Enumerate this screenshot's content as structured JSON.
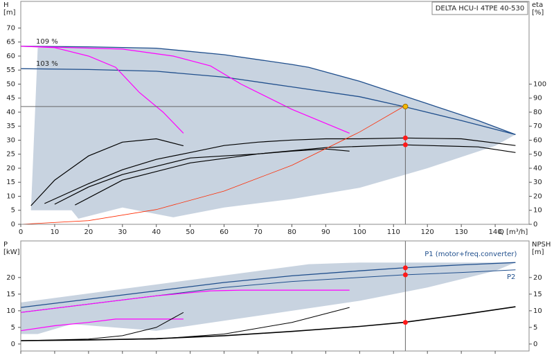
{
  "chart_data": [
    {
      "type": "line",
      "title": "DELTA HCU-I 4TPE 40-530",
      "y_label": "H",
      "y_unit": "[m]",
      "y2_label": "eta",
      "y2_unit": "[%]",
      "x_label": "Q [m³/h]",
      "xlim": [
        0,
        150
      ],
      "xticks": [
        0,
        10,
        20,
        30,
        40,
        50,
        60,
        70,
        80,
        90,
        100,
        110,
        120,
        130,
        140
      ],
      "ylim": [
        0,
        79.5
      ],
      "yticks": [
        0,
        5,
        10,
        15,
        20,
        25,
        30,
        35,
        40,
        45,
        50,
        55,
        60,
        65,
        70
      ],
      "y2lim": [
        0,
        159
      ],
      "y2ticks": [
        0,
        10,
        20,
        30,
        40,
        50,
        60,
        70,
        80,
        90,
        100
      ],
      "show_xtick_labels": true,
      "series": [
        {
          "color": "#c8d3e0",
          "fill": true,
          "x": [
            3,
            5,
            10,
            20,
            40,
            60,
            80,
            85,
            100,
            120,
            135,
            146,
            140,
            120,
            100,
            80,
            60,
            45,
            30,
            17,
            15,
            3
          ],
          "values": [
            5,
            63,
            63.2,
            63.3,
            62.8,
            60.5,
            57,
            56,
            51,
            43,
            37,
            32,
            28,
            20,
            13,
            9,
            6,
            2.5,
            6,
            2,
            5,
            5
          ]
        },
        {
          "name": "109 %",
          "color": "#1f4e8c",
          "width": 1.3,
          "x": [
            0,
            20,
            40,
            60,
            80,
            85,
            100,
            120,
            135,
            146
          ],
          "values": [
            63.5,
            63.3,
            62.8,
            60.5,
            57,
            56,
            51,
            43,
            37,
            32
          ]
        },
        {
          "name": "103 %",
          "color": "#1f4e8c",
          "width": 1.3,
          "x": [
            0,
            20,
            40,
            60,
            80,
            100,
            113,
            130,
            146
          ],
          "values": [
            55.5,
            55.2,
            54.6,
            52.5,
            49,
            45.5,
            42,
            37,
            32
          ]
        },
        {
          "color": "#ff00ff",
          "width": 1.2,
          "x": [
            0,
            10,
            20,
            28,
            35,
            42,
            48
          ],
          "values": [
            63.5,
            63,
            60,
            56,
            47,
            40,
            32.5
          ]
        },
        {
          "color": "#ff00ff",
          "width": 1.2,
          "x": [
            0,
            30,
            45,
            56,
            65,
            80,
            97
          ],
          "values": [
            63.5,
            62.5,
            60,
            56.5,
            50,
            41,
            32.5
          ]
        },
        {
          "color": "#000000",
          "width": 1.2,
          "axis": "y2",
          "x": [
            3,
            10,
            20,
            30,
            40,
            48
          ],
          "values": [
            13.3,
            31.5,
            48.8,
            58.6,
            61,
            56
          ]
        },
        {
          "color": "#000000",
          "width": 1.2,
          "axis": "y2",
          "x": [
            7,
            20,
            30,
            40,
            50,
            60,
            70,
            80,
            90,
            100,
            113,
            130,
            146
          ],
          "values": [
            14.8,
            29,
            38.9,
            46.3,
            51.2,
            56.2,
            58.6,
            60.1,
            61,
            61,
            61.6,
            61,
            56.2
          ]
        },
        {
          "color": "#000000",
          "width": 1.2,
          "axis": "y2",
          "x": [
            16,
            30,
            50,
            70,
            90,
            113,
            135,
            146
          ],
          "values": [
            13.8,
            31.5,
            43.8,
            50.2,
            54.7,
            56.7,
            55.2,
            51.2
          ]
        },
        {
          "color": "#000000",
          "width": 1.2,
          "axis": "y2",
          "x": [
            10,
            20,
            30,
            40,
            50,
            60,
            70,
            80,
            90,
            97
          ],
          "values": [
            14.3,
            26.6,
            35.5,
            41.4,
            47.3,
            48.8,
            50.2,
            52.2,
            53.7,
            52.2
          ]
        },
        {
          "color": "#ff2a00",
          "width": 0.8,
          "x": [
            0,
            20,
            40,
            60,
            80,
            100,
            113
          ],
          "values": [
            0,
            1.32,
            5.26,
            11.84,
            21.05,
            32.9,
            42
          ]
        }
      ],
      "points": [
        {
          "x": 113.5,
          "y": 61.6,
          "color": "#ff1a1a",
          "axis": "y2"
        },
        {
          "x": 113.5,
          "y": 56.7,
          "color": "#ff1a1a",
          "axis": "y2"
        },
        {
          "x": 113.5,
          "y": 42,
          "color": "#f5b800"
        }
      ],
      "operating_point": {
        "x": 113.5,
        "y": 42
      }
    },
    {
      "type": "line",
      "y_label": "P",
      "y_unit": "[kW]",
      "y2_label": "NPSH",
      "y2_unit": "[m]",
      "xlim": [
        0,
        150
      ],
      "xticks": [
        0,
        10,
        20,
        30,
        40,
        50,
        60,
        70,
        80,
        90,
        100,
        110,
        120,
        130,
        140
      ],
      "ylim": [
        -2.1,
        31
      ],
      "yticks": [
        0,
        5,
        10,
        15,
        20
      ],
      "y2lim": [
        -2.1,
        31
      ],
      "y2ticks": [
        0,
        5,
        10,
        15,
        20
      ],
      "show_xtick_labels": false,
      "series": [
        {
          "color": "#c8d3e0",
          "fill": true,
          "x": [
            0,
            85,
            100,
            146,
            140,
            120,
            100,
            80,
            60,
            40,
            15,
            5,
            0
          ],
          "values": [
            12.5,
            24,
            24.5,
            24.5,
            22,
            17,
            13,
            10,
            7,
            4,
            6,
            3,
            3
          ]
        },
        {
          "name": "P1 (motor+freq.converter)",
          "color": "#1f4e8c",
          "width": 1.3,
          "x": [
            0,
            20,
            40,
            60,
            80,
            100,
            113,
            130,
            146
          ],
          "values": [
            11,
            13.5,
            16,
            18.5,
            20.5,
            22,
            22.9,
            23.8,
            24.5
          ]
        },
        {
          "name": "P2",
          "color": "#1f4e8c",
          "width": 1,
          "x": [
            0,
            20,
            40,
            60,
            80,
            100,
            113,
            130,
            146
          ],
          "values": [
            9.5,
            12,
            14.5,
            17,
            18.8,
            20,
            20.8,
            21.5,
            22.3
          ]
        },
        {
          "color": "#ff00ff",
          "width": 1.2,
          "x": [
            0,
            10,
            20,
            28,
            48
          ],
          "values": [
            4,
            5.5,
            6.5,
            7.5,
            7.5
          ]
        },
        {
          "color": "#ff00ff",
          "width": 1.2,
          "x": [
            0,
            20,
            40,
            56,
            65,
            97
          ],
          "values": [
            9.5,
            12,
            14.5,
            16,
            16.2,
            16.2
          ]
        },
        {
          "color": "#000000",
          "width": 1,
          "x": [
            0,
            20,
            30,
            40,
            48
          ],
          "values": [
            1,
            1.5,
            2.5,
            5,
            9.5
          ]
        },
        {
          "color": "#000000",
          "width": 1,
          "x": [
            0,
            40,
            60,
            80,
            97
          ],
          "values": [
            1,
            1.5,
            3,
            6.5,
            11
          ]
        },
        {
          "color": "#000000",
          "width": 1.6,
          "axis": "y2",
          "x": [
            0,
            20,
            40,
            60,
            80,
            100,
            113,
            130,
            146
          ],
          "values": [
            1,
            1.2,
            1.6,
            2.5,
            3.8,
            5.3,
            6.5,
            8.8,
            11.2
          ]
        }
      ],
      "points": [
        {
          "x": 113.5,
          "y": 22.9,
          "color": "#ff1a1a"
        },
        {
          "x": 113.5,
          "y": 20.8,
          "color": "#ff1a1a"
        },
        {
          "x": 113.5,
          "y": 6.5,
          "color": "#ff1a1a",
          "axis": "y2"
        }
      ],
      "operating_point": {
        "x": 113.5
      }
    }
  ]
}
